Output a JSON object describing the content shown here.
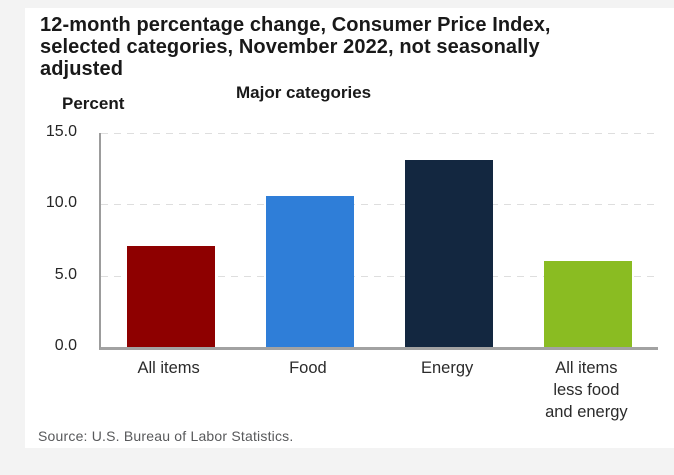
{
  "chart": {
    "title": "12-month percentage change, Consumer Price Index, selected categories, November 2022, not seasonally adjusted",
    "ylabel": "Percent",
    "xlabel": "Major categories",
    "source": "Source: U.S. Bureau of Labor Statistics."
  },
  "chart_data": {
    "type": "bar",
    "title": "12-month percentage change, Consumer Price Index, selected categories, November 2022, not seasonally adjusted",
    "xlabel": "Major categories",
    "ylabel": "Percent",
    "categories": [
      "All items",
      "Food",
      "Energy",
      "All items less food and energy"
    ],
    "category_label_lines": [
      [
        "All items"
      ],
      [
        "Food"
      ],
      [
        "Energy"
      ],
      [
        "All items",
        "less food",
        "and energy"
      ]
    ],
    "values": [
      7.1,
      10.6,
      13.1,
      6.0
    ],
    "bar_colors": [
      "#8e0000",
      "#2f7ed8",
      "#132740",
      "#8abc22"
    ],
    "ylim": [
      0,
      15
    ],
    "ytick_values": [
      0,
      5,
      10,
      15
    ],
    "ytick_labels": [
      "0.0",
      "5.0",
      "10.0",
      "15.0"
    ],
    "grid": "horizontal-dashed",
    "legend_position": "none",
    "source": "Source: U.S. Bureau of Labor Statistics."
  },
  "colors": {
    "page_background": "#f3f3f3",
    "card_background": "#ffffff",
    "axis_line": "#a2a2a2",
    "gridline": "#dedede",
    "title_text": "#191919",
    "label_text": "#2b2b2b",
    "source_text": "#58595b"
  }
}
